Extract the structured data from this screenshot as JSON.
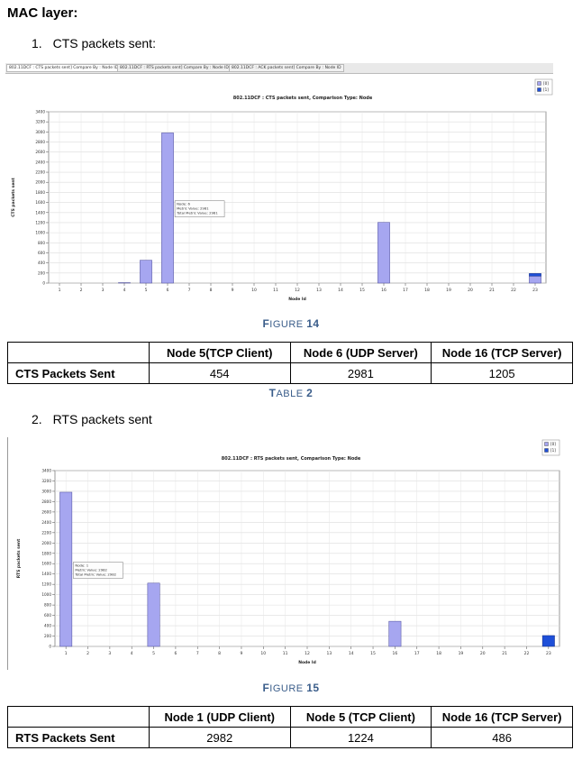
{
  "section_title": "MAC layer:",
  "items": [
    {
      "number": "1.",
      "title": "CTS packets sent:"
    },
    {
      "number": "2.",
      "title": "RTS packets sent"
    }
  ],
  "tabs": [
    "802.11DCF : CTS packets sent] Compare By : Node ID",
    "802.11DCF : RTS packets sent] Compare By : Node ID",
    "802.11DCF : ACK packets sent] Compare By : Node ID"
  ],
  "figures": [
    {
      "caption_prefix": "F",
      "caption_word": "IGURE",
      "caption_num": "14"
    },
    {
      "caption_prefix": "F",
      "caption_word": "IGURE",
      "caption_num": "15"
    }
  ],
  "tables": [
    {
      "caption_prefix": "T",
      "caption_word": "ABLE",
      "caption_num": "2",
      "headers": [
        "",
        "Node 5(TCP Client)",
        "Node 6 (UDP Server)",
        "Node 16 (TCP Server)"
      ],
      "row_label": "CTS Packets Sent",
      "values": [
        "454",
        "2981",
        "1205"
      ]
    },
    {
      "headers": [
        "",
        "Node 1 (UDP Client)",
        "Node 5 (TCP Client)",
        "Node 16 (TCP Server)"
      ],
      "row_label": "RTS Packets Sent",
      "values": [
        "2982",
        "1224",
        "486"
      ]
    }
  ],
  "chart_data": [
    {
      "type": "bar",
      "title": "802.11DCF : CTS packets sent, Comparison Type: Node",
      "xlabel": "Node Id",
      "ylabel": "CTS packets sent",
      "categories": [
        "1",
        "2",
        "3",
        "4",
        "5",
        "6",
        "7",
        "8",
        "9",
        "10",
        "11",
        "12",
        "13",
        "14",
        "15",
        "16",
        "17",
        "18",
        "19",
        "20",
        "21",
        "22",
        "23"
      ],
      "ylim": [
        0,
        3400
      ],
      "yticks": [
        0,
        200,
        400,
        600,
        800,
        1000,
        1200,
        1400,
        1600,
        1800,
        2000,
        2200,
        2400,
        2600,
        2800,
        3000,
        3200,
        3400
      ],
      "grid": true,
      "legend_position": "top-right",
      "series": [
        {
          "name": "[0]",
          "color": "#a6a6f0",
          "values": [
            0,
            0,
            0,
            8,
            454,
            2981,
            0,
            0,
            0,
            0,
            0,
            0,
            0,
            0,
            0,
            1205,
            0,
            0,
            0,
            0,
            0,
            0,
            140
          ]
        },
        {
          "name": "[1]",
          "color": "#1e4fd8",
          "values": [
            0,
            0,
            0,
            0,
            0,
            0,
            0,
            0,
            0,
            0,
            0,
            0,
            0,
            0,
            0,
            0,
            0,
            0,
            0,
            0,
            0,
            0,
            50
          ]
        }
      ],
      "tooltip": [
        "Node: 6",
        "Metric Value: 2981",
        "Total Metric Value: 2981"
      ],
      "tooltip_node": "6"
    },
    {
      "type": "bar",
      "title": "802.11DCF : RTS packets sent, Comparison Type: Node",
      "xlabel": "Node Id",
      "ylabel": "RTS packets sent",
      "categories": [
        "1",
        "2",
        "3",
        "4",
        "5",
        "6",
        "7",
        "8",
        "9",
        "10",
        "11",
        "12",
        "13",
        "14",
        "15",
        "16",
        "17",
        "18",
        "19",
        "20",
        "21",
        "22",
        "23"
      ],
      "ylim": [
        0,
        3400
      ],
      "yticks": [
        0,
        200,
        400,
        600,
        800,
        1000,
        1200,
        1400,
        1600,
        1800,
        2000,
        2200,
        2400,
        2600,
        2800,
        3000,
        3200,
        3400
      ],
      "grid": true,
      "legend_position": "top-right",
      "series": [
        {
          "name": "[0]",
          "color": "#a6a6f0",
          "values": [
            2982,
            0,
            0,
            0,
            1224,
            0,
            0,
            0,
            0,
            0,
            0,
            0,
            0,
            0,
            0,
            486,
            0,
            0,
            0,
            0,
            0,
            0,
            0
          ]
        },
        {
          "name": "[1]",
          "color": "#1e4fd8",
          "values": [
            0,
            0,
            0,
            0,
            0,
            0,
            0,
            0,
            0,
            0,
            0,
            0,
            0,
            0,
            0,
            0,
            0,
            0,
            0,
            0,
            0,
            0,
            210
          ]
        }
      ],
      "tooltip": [
        "Node: 1",
        "Metric Value: 2982",
        "Total Metric Value: 2982"
      ],
      "tooltip_node": "1"
    }
  ]
}
